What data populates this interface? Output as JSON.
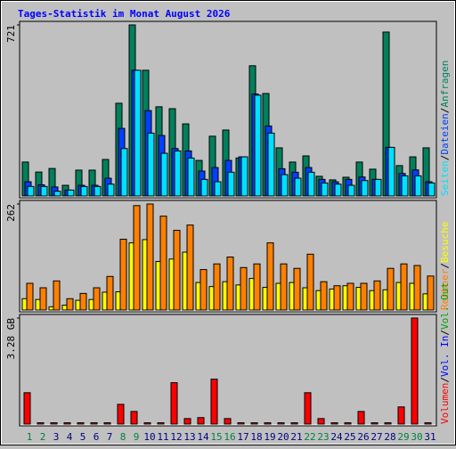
{
  "chart_data": [
    {
      "type": "bar",
      "title": "Tages-Statistik im Monat August 2026",
      "ylim": [
        0,
        721
      ],
      "yticks": [
        721
      ],
      "series": [
        {
          "name": "Anfragen",
          "color": "#00805c",
          "values": [
            143,
            101,
            116,
            45,
            109,
            109,
            154,
            391,
            721,
            530,
            376,
            368,
            304,
            150,
            252,
            278,
            160,
            549,
            432,
            203,
            143,
            169,
            83,
            68,
            79,
            143,
            113,
            691,
            128,
            165,
            203
          ]
        },
        {
          "name": "Dateien",
          "color": "#0040ff",
          "values": [
            60,
            47,
            38,
            25,
            45,
            45,
            75,
            285,
            530,
            360,
            255,
            200,
            190,
            105,
            120,
            150,
            165,
            430,
            295,
            115,
            100,
            120,
            70,
            60,
            70,
            80,
            70,
            205,
            95,
            110,
            60
          ]
        },
        {
          "name": "Seiten",
          "color": "#00e0ff",
          "values": [
            40,
            40,
            20,
            25,
            40,
            40,
            50,
            200,
            530,
            265,
            180,
            190,
            160,
            70,
            60,
            100,
            165,
            425,
            265,
            90,
            75,
            100,
            55,
            50,
            45,
            65,
            70,
            205,
            85,
            85,
            55
          ]
        }
      ]
    },
    {
      "type": "bar",
      "ylim": [
        0,
        262
      ],
      "yticks": [
        262
      ],
      "series": [
        {
          "name": "Besuche",
          "color": "#ffff00",
          "values": [
            28,
            26,
            8,
            12,
            24,
            26,
            44,
            45,
            166,
            174,
            120,
            126,
            143,
            68,
            58,
            70,
            62,
            78,
            56,
            66,
            68,
            55,
            48,
            52,
            60,
            56,
            48,
            50,
            68,
            66,
            40
          ]
        },
        {
          "name": "Rechner",
          "color": "#ff8000",
          "values": [
            66,
            55,
            72,
            28,
            41,
            55,
            83,
            175,
            258,
            262,
            232,
            197,
            210,
            100,
            114,
            131,
            105,
            114,
            166,
            114,
            103,
            138,
            70,
            60,
            66,
            66,
            72,
            103,
            114,
            110,
            84
          ]
        }
      ]
    },
    {
      "type": "bar",
      "ylim": [
        0,
        3.28
      ],
      "yticks": [
        {
          "value": 3.28,
          "label": "3.28 GB"
        }
      ],
      "series": [
        {
          "name": "Volumen",
          "color": "#ff0000",
          "values": [
            0.97,
            0.04,
            0.04,
            0.04,
            0.04,
            0.04,
            0.04,
            0.61,
            0.39,
            0.04,
            0.04,
            1.28,
            0.17,
            0.2,
            1.39,
            0.17,
            0.04,
            0.04,
            0.04,
            0.04,
            0.04,
            0.97,
            0.17,
            0.04,
            0.04,
            0.39,
            0.04,
            0.04,
            0.53,
            3.28,
            0.04
          ]
        }
      ],
      "extra_legend": [
        {
          "name": "Vol. In",
          "color": "#0000ff"
        },
        {
          "name": "Vol. Out",
          "color": "#00a000"
        }
      ],
      "categories": [
        "1",
        "2",
        "3",
        "4",
        "5",
        "6",
        "7",
        "8",
        "9",
        "10",
        "11",
        "12",
        "13",
        "14",
        "15",
        "16",
        "17",
        "18",
        "19",
        "20",
        "21",
        "22",
        "23",
        "24",
        "25",
        "26",
        "27",
        "28",
        "29",
        "30",
        "31"
      ],
      "category_colors": [
        "#008040",
        "#008040",
        "#000080",
        "#000080",
        "#000080",
        "#000080",
        "#000080",
        "#008040",
        "#008040",
        "#000080",
        "#000080",
        "#000080",
        "#000080",
        "#000080",
        "#008040",
        "#008040",
        "#000080",
        "#000080",
        "#000080",
        "#000080",
        "#000080",
        "#008040",
        "#008040",
        "#000080",
        "#000080",
        "#000080",
        "#000080",
        "#000080",
        "#008040",
        "#008040",
        "#000080"
      ]
    }
  ],
  "legend_separator": "/"
}
